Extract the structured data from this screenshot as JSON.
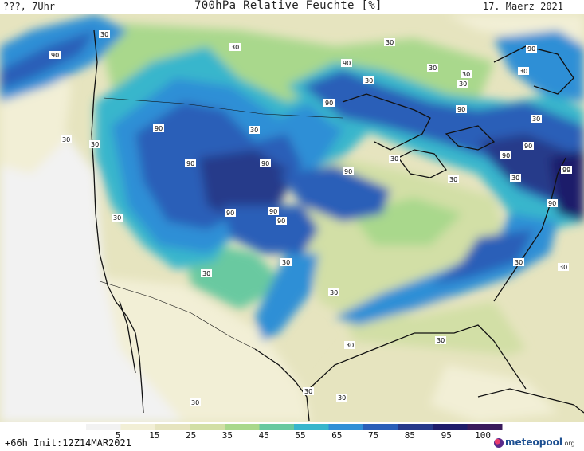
{
  "header": {
    "left_label": "???, 7Uhr",
    "title": "700hPa Relative Feuchte [%]",
    "date": "17. Maerz 2021"
  },
  "map": {
    "contour_labels": [
      {
        "text": "90"
      },
      {
        "text": "90"
      },
      {
        "text": "90"
      },
      {
        "text": "90"
      },
      {
        "text": "90"
      },
      {
        "text": "90"
      },
      {
        "text": "90"
      },
      {
        "text": "90"
      },
      {
        "text": "90"
      },
      {
        "text": "90"
      },
      {
        "text": "90"
      },
      {
        "text": "90"
      },
      {
        "text": "90"
      },
      {
        "text": "90"
      },
      {
        "text": "90"
      },
      {
        "text": "99"
      },
      {
        "text": "30"
      },
      {
        "text": "30"
      },
      {
        "text": "30"
      },
      {
        "text": "30"
      },
      {
        "text": "30"
      },
      {
        "text": "30"
      },
      {
        "text": "30"
      },
      {
        "text": "30"
      },
      {
        "text": "30"
      },
      {
        "text": "30"
      },
      {
        "text": "30"
      },
      {
        "text": "30"
      },
      {
        "text": "30"
      },
      {
        "text": "30"
      },
      {
        "text": "30"
      },
      {
        "text": "30"
      },
      {
        "text": "30"
      },
      {
        "text": "30"
      },
      {
        "text": "30"
      },
      {
        "text": "30"
      },
      {
        "text": "30"
      },
      {
        "text": "30"
      },
      {
        "text": "30"
      },
      {
        "text": "30"
      },
      {
        "text": "30"
      },
      {
        "text": "30"
      }
    ]
  },
  "legend": {
    "labels": [
      "5",
      "15",
      "25",
      "35",
      "45",
      "55",
      "65",
      "75",
      "85",
      "95",
      "100"
    ],
    "colors": [
      "#f2f2f2",
      "#f2efd6",
      "#e6e4bf",
      "#d2dfa6",
      "#a9d88c",
      "#69c9a0",
      "#38b6cc",
      "#2f8fd6",
      "#2a5fb8",
      "#263a8a",
      "#1f1d6a",
      "#3a1b5c"
    ]
  },
  "footer": {
    "run_info": "+66h Init:12Z14MAR2021",
    "brand": "meteopool",
    "brand_suffix": ".org"
  }
}
